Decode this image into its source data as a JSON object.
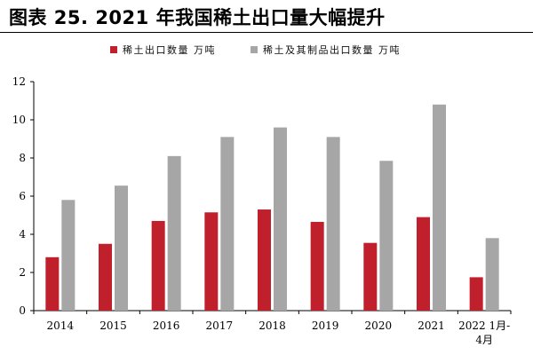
{
  "title": "图表 25. 2021 年我国稀土出口量大幅提升",
  "colors": {
    "series1": "#c0202b",
    "series2": "#a6a6a6",
    "axis": "#000000"
  },
  "chart_data": {
    "type": "bar",
    "categories": [
      "2014",
      "2015",
      "2016",
      "2017",
      "2018",
      "2019",
      "2020",
      "2021",
      "2022 1月-4月"
    ],
    "category_lines": [
      [
        "2014"
      ],
      [
        "2015"
      ],
      [
        "2016"
      ],
      [
        "2017"
      ],
      [
        "2018"
      ],
      [
        "2019"
      ],
      [
        "2020"
      ],
      [
        "2021"
      ],
      [
        "2022 1月-",
        "4月"
      ]
    ],
    "series": [
      {
        "name": "稀土出口数量 万吨",
        "values": [
          2.8,
          3.5,
          4.7,
          5.15,
          5.3,
          4.65,
          3.55,
          4.9,
          1.75
        ]
      },
      {
        "name": "稀土及其制品出口数量 万吨",
        "values": [
          5.8,
          6.55,
          8.1,
          9.1,
          9.6,
          9.1,
          7.85,
          10.8,
          3.8
        ]
      }
    ],
    "ylim": [
      0,
      12
    ],
    "yticks": [
      0,
      2,
      4,
      6,
      8,
      10,
      12
    ],
    "legend": "top",
    "grid": false
  }
}
